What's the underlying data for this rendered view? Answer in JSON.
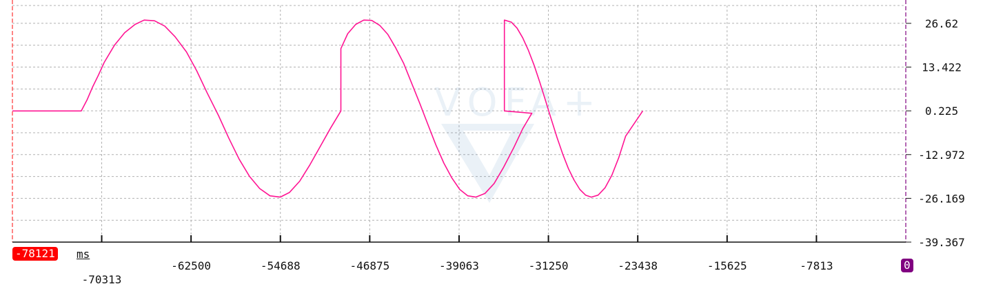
{
  "chart_data": {
    "type": "line",
    "x_unit": "ms",
    "x_range": [
      -78121,
      0
    ],
    "y_range": [
      -39.367,
      32.0
    ],
    "y_tick_labels": [
      "26.62",
      "13.422",
      "0.225",
      "-12.972",
      "-26.169",
      "-39.367"
    ],
    "y_tick_values": [
      26.62,
      13.422,
      0.225,
      -12.972,
      -26.169,
      -39.367
    ],
    "x_tick_labels": [
      "-70313",
      "-62500",
      "-54688",
      "-46875",
      "-39063",
      "-31250",
      "-23438",
      "-15625",
      "-7813"
    ],
    "x_tick_values": [
      -70313,
      -62500,
      -54688,
      -46875,
      -39063,
      -31250,
      -23438,
      -15625,
      -7813
    ],
    "cursor_start_label": "-78121",
    "cursor_end_label": "0",
    "watermark": "VOFA+",
    "grid": true,
    "series": [
      {
        "color": "#ff1493",
        "points": [
          [
            -78121,
            0.2
          ],
          [
            -72097,
            0.2
          ],
          [
            -71600,
            3.5
          ],
          [
            -71100,
            7.5
          ],
          [
            -70600,
            11.0
          ],
          [
            -70100,
            14.8
          ],
          [
            -69200,
            20.0
          ],
          [
            -68300,
            23.8
          ],
          [
            -67400,
            26.3
          ],
          [
            -66600,
            27.6
          ],
          [
            -65700,
            27.4
          ],
          [
            -64800,
            25.8
          ],
          [
            -63900,
            22.6
          ],
          [
            -62900,
            18.0
          ],
          [
            -62000,
            12.3
          ],
          [
            -61100,
            5.7
          ],
          [
            -60100,
            -1.2
          ],
          [
            -59200,
            -8.0
          ],
          [
            -58300,
            -14.3
          ],
          [
            -57400,
            -19.5
          ],
          [
            -56500,
            -23.2
          ],
          [
            -55600,
            -25.4
          ],
          [
            -54700,
            -25.8
          ],
          [
            -53900,
            -24.4
          ],
          [
            -53000,
            -21.0
          ],
          [
            -52100,
            -16.0
          ],
          [
            -51200,
            -10.5
          ],
          [
            -50300,
            -5.0
          ],
          [
            -49400,
            0.2
          ],
          [
            -49400,
            19.0
          ],
          [
            -48800,
            23.5
          ],
          [
            -48100,
            26.3
          ],
          [
            -47400,
            27.6
          ],
          [
            -46700,
            27.5
          ],
          [
            -46000,
            26.0
          ],
          [
            -45300,
            23.3
          ],
          [
            -44600,
            19.2
          ],
          [
            -43900,
            14.5
          ],
          [
            -43200,
            8.5
          ],
          [
            -42500,
            2.5
          ],
          [
            -41800,
            -3.8
          ],
          [
            -41100,
            -10.0
          ],
          [
            -40400,
            -15.5
          ],
          [
            -39700,
            -20.0
          ],
          [
            -39000,
            -23.5
          ],
          [
            -38300,
            -25.4
          ],
          [
            -37600,
            -25.8
          ],
          [
            -36800,
            -24.7
          ],
          [
            -36000,
            -21.7
          ],
          [
            -35200,
            -17.0
          ],
          [
            -34300,
            -11.0
          ],
          [
            -33500,
            -5.2
          ],
          [
            -32700,
            -0.5
          ],
          [
            -35100,
            0.2
          ],
          [
            -35100,
            27.6
          ],
          [
            -34500,
            27.0
          ],
          [
            -34000,
            25.2
          ],
          [
            -33500,
            22.3
          ],
          [
            -33000,
            18.5
          ],
          [
            -32500,
            14.0
          ],
          [
            -32000,
            8.8
          ],
          [
            -31500,
            3.3
          ],
          [
            -31000,
            -2.3
          ],
          [
            -30500,
            -7.8
          ],
          [
            -30000,
            -12.8
          ],
          [
            -29500,
            -17.2
          ],
          [
            -29000,
            -20.7
          ],
          [
            -28500,
            -23.5
          ],
          [
            -28000,
            -25.2
          ],
          [
            -27500,
            -25.8
          ],
          [
            -26900,
            -25.2
          ],
          [
            -26300,
            -23.0
          ],
          [
            -25700,
            -19.2
          ],
          [
            -25100,
            -13.9
          ],
          [
            -24500,
            -7.4
          ],
          [
            -23000,
            0.2
          ]
        ]
      }
    ]
  }
}
